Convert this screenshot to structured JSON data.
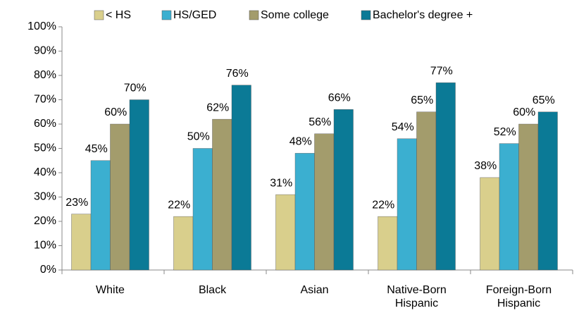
{
  "chart_data": {
    "type": "bar",
    "categories": [
      "White",
      "Black",
      "Asian",
      "Native-Born Hispanic",
      "Foreign-Born Hispanic"
    ],
    "series": [
      {
        "name": "< HS",
        "color": "#d9cf8c",
        "values": [
          23,
          22,
          31,
          22,
          38
        ],
        "value_labels": [
          "23%",
          "22%",
          "31%",
          "22%",
          "38%"
        ]
      },
      {
        "name": "HS/GED",
        "color": "#3bafd0",
        "values": [
          45,
          50,
          48,
          54,
          52
        ],
        "value_labels": [
          "45%",
          "50%",
          "48%",
          "54%",
          "52%"
        ]
      },
      {
        "name": "Some college",
        "color": "#a39c6c",
        "values": [
          60,
          62,
          56,
          65,
          60
        ],
        "value_labels": [
          "60%",
          "62%",
          "56%",
          "65%",
          "60%"
        ]
      },
      {
        "name": "Bachelor's degree +",
        "color": "#0b7a96",
        "values": [
          70,
          76,
          66,
          77,
          65
        ],
        "value_labels": [
          "70%",
          "76%",
          "66%",
          "77%",
          "65%"
        ]
      }
    ],
    "ylim": [
      0,
      100
    ],
    "yticks": [
      {
        "value": 0,
        "label": "0%"
      },
      {
        "value": 10,
        "label": "10%"
      },
      {
        "value": 20,
        "label": "20%"
      },
      {
        "value": 30,
        "label": "30%"
      },
      {
        "value": 40,
        "label": "40%"
      },
      {
        "value": 50,
        "label": "50%"
      },
      {
        "value": 60,
        "label": "60%"
      },
      {
        "value": 70,
        "label": "70%"
      },
      {
        "value": 80,
        "label": "80%"
      },
      {
        "value": 90,
        "label": "90%"
      },
      {
        "value": 100,
        "label": "100%"
      }
    ],
    "grid": false,
    "legend": "top"
  }
}
